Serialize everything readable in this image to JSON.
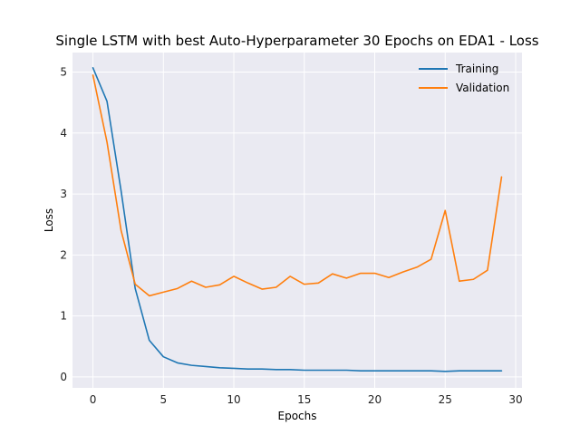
{
  "chart_data": {
    "type": "line",
    "title": "Single LSTM with best Auto-Hyperparameter 30 Epochs on EDA1 - Loss",
    "xlabel": "Epochs",
    "ylabel": "Loss",
    "xlim": [
      -1.45,
      30.45
    ],
    "ylim": [
      -0.18,
      5.32
    ],
    "xticks": [
      0,
      5,
      10,
      15,
      20,
      25,
      30
    ],
    "yticks": [
      0,
      1,
      2,
      3,
      4,
      5
    ],
    "grid": true,
    "background": "#eaeaf2",
    "legend_position": "top-right",
    "x": [
      0,
      1,
      2,
      3,
      4,
      5,
      6,
      7,
      8,
      9,
      10,
      11,
      12,
      13,
      14,
      15,
      16,
      17,
      18,
      19,
      20,
      21,
      22,
      23,
      24,
      25,
      26,
      27,
      28,
      29
    ],
    "series": [
      {
        "name": "Training",
        "color": "#1f77b4",
        "values": [
          5.07,
          4.52,
          3.05,
          1.45,
          0.6,
          0.33,
          0.23,
          0.19,
          0.17,
          0.15,
          0.14,
          0.13,
          0.13,
          0.12,
          0.12,
          0.11,
          0.11,
          0.11,
          0.11,
          0.1,
          0.1,
          0.1,
          0.1,
          0.1,
          0.1,
          0.09,
          0.1,
          0.1,
          0.1,
          0.1
        ]
      },
      {
        "name": "Validation",
        "color": "#ff7f0e",
        "values": [
          4.95,
          3.85,
          2.4,
          1.52,
          1.33,
          1.39,
          1.45,
          1.57,
          1.47,
          1.51,
          1.65,
          1.54,
          1.44,
          1.47,
          1.65,
          1.52,
          1.54,
          1.69,
          1.62,
          1.7,
          1.7,
          1.63,
          1.72,
          1.8,
          1.93,
          2.73,
          1.57,
          1.6,
          1.75,
          3.28
        ]
      }
    ]
  }
}
